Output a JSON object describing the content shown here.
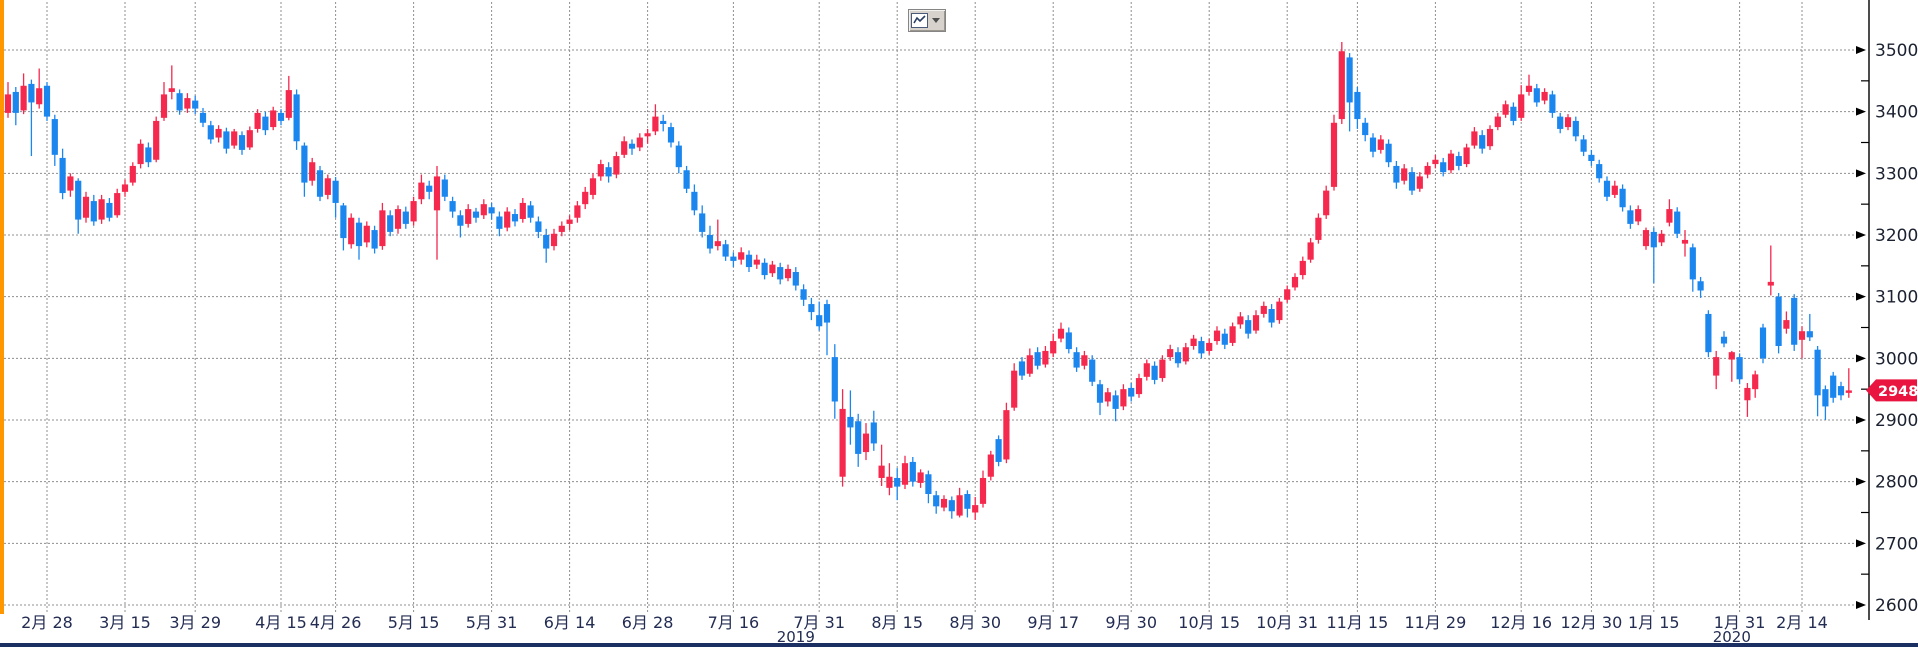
{
  "window": {
    "left_accent_color": "#ff9800",
    "bottom_bar_color": "#1b2f63",
    "background": "#ffffff"
  },
  "toolbar": {
    "chart_type_button": {
      "icon": "line-chart-icon",
      "has_dropdown": true
    }
  },
  "last_price_tag": {
    "value": "2948.0",
    "bg": "#e9143f",
    "text_color": "#ffffff"
  },
  "chart_data": {
    "type": "candlestick",
    "title": "",
    "ylabel": "",
    "xlabel": "",
    "y_range": [
      2600,
      3500
    ],
    "y_tick_step": 100,
    "y_minor_tick_step": 50,
    "y_tick_labels": [
      "3500",
      "3400",
      "3300",
      "3200",
      "3100",
      "3000",
      "2900",
      "2800",
      "2700",
      "2600"
    ],
    "grid": "dotted",
    "legend_position": "none",
    "up_color": "#f5294d",
    "down_color": "#1b87ee",
    "grid_color": "#8f8f8f",
    "axis_color": "#000000",
    "y_label_color": "#1b2130",
    "x_label_color": "#232c52",
    "last_price": 2948.0,
    "x_labels": [
      {
        "label": "2月 28",
        "i": 5
      },
      {
        "label": "3月 15",
        "i": 15
      },
      {
        "label": "3月 29",
        "i": 24
      },
      {
        "label": "4月 15",
        "i": 35
      },
      {
        "label": "4月 26",
        "i": 42
      },
      {
        "label": "5月 15",
        "i": 52
      },
      {
        "label": "5月 31",
        "i": 62
      },
      {
        "label": "6月 14",
        "i": 72
      },
      {
        "label": "6月 28",
        "i": 82
      },
      {
        "label": "7月 16",
        "i": 93
      },
      {
        "label": "7月 31",
        "i": 104
      },
      {
        "label": "8月 15",
        "i": 114
      },
      {
        "label": "8月 30",
        "i": 124
      },
      {
        "label": "9月 17",
        "i": 134
      },
      {
        "label": "9月 30",
        "i": 144
      },
      {
        "label": "10月 15",
        "i": 154
      },
      {
        "label": "10月 31",
        "i": 164
      },
      {
        "label": "11月 15",
        "i": 173
      },
      {
        "label": "11月 29",
        "i": 183
      },
      {
        "label": "12月 16",
        "i": 194
      },
      {
        "label": "12月 30",
        "i": 203
      },
      {
        "label": "1月 15",
        "i": 211
      },
      {
        "label": "1月 31",
        "i": 222
      },
      {
        "label": "2月 14",
        "i": 230
      }
    ],
    "year_markers": [
      {
        "text": "2019",
        "i": 101
      },
      {
        "text": "2020",
        "i": 221
      }
    ],
    "ohlc": [
      [
        3398,
        3448,
        3390,
        3428
      ],
      [
        3432,
        3440,
        3378,
        3398
      ],
      [
        3402,
        3462,
        3396,
        3442
      ],
      [
        3445,
        3452,
        3328,
        3415
      ],
      [
        3412,
        3470,
        3405,
        3438
      ],
      [
        3442,
        3448,
        3385,
        3392
      ],
      [
        3388,
        3395,
        3312,
        3330
      ],
      [
        3325,
        3340,
        3258,
        3268
      ],
      [
        3272,
        3300,
        3262,
        3295
      ],
      [
        3288,
        3292,
        3202,
        3225
      ],
      [
        3228,
        3270,
        3220,
        3262
      ],
      [
        3255,
        3265,
        3215,
        3222
      ],
      [
        3225,
        3265,
        3218,
        3258
      ],
      [
        3252,
        3260,
        3222,
        3228
      ],
      [
        3232,
        3275,
        3228,
        3268
      ],
      [
        3270,
        3290,
        3262,
        3282
      ],
      [
        3285,
        3318,
        3280,
        3312
      ],
      [
        3315,
        3355,
        3308,
        3348
      ],
      [
        3342,
        3350,
        3310,
        3318
      ],
      [
        3322,
        3392,
        3318,
        3385
      ],
      [
        3390,
        3448,
        3385,
        3428
      ],
      [
        3432,
        3475,
        3420,
        3438
      ],
      [
        3430,
        3436,
        3395,
        3402
      ],
      [
        3405,
        3430,
        3398,
        3422
      ],
      [
        3418,
        3426,
        3396,
        3405
      ],
      [
        3398,
        3406,
        3375,
        3382
      ],
      [
        3378,
        3385,
        3348,
        3355
      ],
      [
        3358,
        3378,
        3350,
        3372
      ],
      [
        3368,
        3374,
        3332,
        3340
      ],
      [
        3345,
        3372,
        3340,
        3368
      ],
      [
        3362,
        3368,
        3330,
        3338
      ],
      [
        3342,
        3376,
        3338,
        3370
      ],
      [
        3372,
        3404,
        3366,
        3398
      ],
      [
        3392,
        3400,
        3362,
        3370
      ],
      [
        3375,
        3408,
        3370,
        3402
      ],
      [
        3398,
        3404,
        3378,
        3385
      ],
      [
        3390,
        3458,
        3386,
        3435
      ],
      [
        3428,
        3436,
        3338,
        3352
      ],
      [
        3345,
        3350,
        3262,
        3285
      ],
      [
        3288,
        3325,
        3280,
        3318
      ],
      [
        3305,
        3312,
        3255,
        3262
      ],
      [
        3265,
        3298,
        3258,
        3292
      ],
      [
        3288,
        3294,
        3228,
        3252
      ],
      [
        3248,
        3252,
        3175,
        3195
      ],
      [
        3185,
        3235,
        3178,
        3228
      ],
      [
        3220,
        3228,
        3160,
        3182
      ],
      [
        3188,
        3222,
        3180,
        3215
      ],
      [
        3208,
        3215,
        3170,
        3178
      ],
      [
        3182,
        3252,
        3176,
        3240
      ],
      [
        3232,
        3240,
        3198,
        3205
      ],
      [
        3210,
        3248,
        3202,
        3242
      ],
      [
        3238,
        3246,
        3210,
        3218
      ],
      [
        3222,
        3262,
        3215,
        3255
      ],
      [
        3258,
        3298,
        3250,
        3285
      ],
      [
        3280,
        3288,
        3258,
        3270
      ],
      [
        3240,
        3312,
        3160,
        3295
      ],
      [
        3290,
        3298,
        3255,
        3262
      ],
      [
        3255,
        3262,
        3228,
        3238
      ],
      [
        3232,
        3240,
        3196,
        3215
      ],
      [
        3218,
        3250,
        3212,
        3242
      ],
      [
        3238,
        3244,
        3220,
        3228
      ],
      [
        3232,
        3258,
        3226,
        3250
      ],
      [
        3245,
        3252,
        3225,
        3235
      ],
      [
        3230,
        3238,
        3198,
        3210
      ],
      [
        3212,
        3245,
        3206,
        3238
      ],
      [
        3234,
        3242,
        3214,
        3222
      ],
      [
        3226,
        3260,
        3220,
        3252
      ],
      [
        3248,
        3255,
        3220,
        3228
      ],
      [
        3222,
        3230,
        3195,
        3205
      ],
      [
        3200,
        3210,
        3155,
        3178
      ],
      [
        3182,
        3210,
        3175,
        3202
      ],
      [
        3205,
        3222,
        3198,
        3215
      ],
      [
        3218,
        3232,
        3208,
        3225
      ],
      [
        3228,
        3255,
        3220,
        3248
      ],
      [
        3250,
        3278,
        3242,
        3270
      ],
      [
        3265,
        3300,
        3258,
        3292
      ],
      [
        3295,
        3322,
        3288,
        3315
      ],
      [
        3310,
        3318,
        3285,
        3295
      ],
      [
        3298,
        3335,
        3292,
        3328
      ],
      [
        3330,
        3360,
        3325,
        3352
      ],
      [
        3348,
        3355,
        3330,
        3340
      ],
      [
        3342,
        3365,
        3336,
        3358
      ],
      [
        3360,
        3372,
        3348,
        3365
      ],
      [
        3368,
        3412,
        3362,
        3392
      ],
      [
        3385,
        3395,
        3368,
        3380
      ],
      [
        3375,
        3382,
        3342,
        3350
      ],
      [
        3345,
        3352,
        3300,
        3310
      ],
      [
        3305,
        3312,
        3268,
        3275
      ],
      [
        3270,
        3282,
        3232,
        3240
      ],
      [
        3235,
        3248,
        3196,
        3205
      ],
      [
        3200,
        3215,
        3170,
        3178
      ],
      [
        3182,
        3225,
        3175,
        3190
      ],
      [
        3185,
        3192,
        3158,
        3165
      ],
      [
        3165,
        3172,
        3148,
        3158
      ],
      [
        3160,
        3180,
        3152,
        3172
      ],
      [
        3168,
        3175,
        3140,
        3148
      ],
      [
        3152,
        3168,
        3145,
        3160
      ],
      [
        3155,
        3162,
        3128,
        3135
      ],
      [
        3138,
        3158,
        3132,
        3152
      ],
      [
        3148,
        3155,
        3120,
        3128
      ],
      [
        3130,
        3152,
        3125,
        3145
      ],
      [
        3140,
        3148,
        3110,
        3118
      ],
      [
        3112,
        3120,
        3085,
        3095
      ],
      [
        3088,
        3098,
        3062,
        3075
      ],
      [
        3070,
        3092,
        3045,
        3052
      ],
      [
        3088,
        3095,
        3005,
        3058
      ],
      [
        3002,
        3023,
        2902,
        2930
      ],
      [
        2808,
        2950,
        2792,
        2918
      ],
      [
        2905,
        2948,
        2860,
        2888
      ],
      [
        2898,
        2910,
        2824,
        2845
      ],
      [
        2848,
        2895,
        2835,
        2878
      ],
      [
        2896,
        2915,
        2850,
        2862
      ],
      [
        2806,
        2860,
        2793,
        2826
      ],
      [
        2790,
        2830,
        2778,
        2808
      ],
      [
        2806,
        2822,
        2770,
        2792
      ],
      [
        2795,
        2842,
        2788,
        2830
      ],
      [
        2832,
        2840,
        2792,
        2800
      ],
      [
        2798,
        2820,
        2790,
        2815
      ],
      [
        2812,
        2818,
        2765,
        2780
      ],
      [
        2778,
        2785,
        2748,
        2760
      ],
      [
        2758,
        2778,
        2752,
        2772
      ],
      [
        2770,
        2776,
        2740,
        2752
      ],
      [
        2745,
        2790,
        2742,
        2778
      ],
      [
        2780,
        2786,
        2742,
        2756
      ],
      [
        2750,
        2775,
        2738,
        2762
      ],
      [
        2764,
        2818,
        2758,
        2806
      ],
      [
        2808,
        2850,
        2802,
        2844
      ],
      [
        2869,
        2875,
        2825,
        2832
      ],
      [
        2836,
        2928,
        2830,
        2916
      ],
      [
        2920,
        2992,
        2915,
        2980
      ],
      [
        2995,
        3002,
        2965,
        2972
      ],
      [
        2975,
        3016,
        2970,
        3005
      ],
      [
        3010,
        3018,
        2982,
        2988
      ],
      [
        2990,
        3020,
        2985,
        3012
      ],
      [
        3008,
        3040,
        3002,
        3028
      ],
      [
        3032,
        3058,
        3026,
        3048
      ],
      [
        3042,
        3050,
        3008,
        3015
      ],
      [
        3010,
        3018,
        2978,
        2985
      ],
      [
        2988,
        3012,
        2982,
        3005
      ],
      [
        2998,
        3005,
        2955,
        2962
      ],
      [
        2958,
        2965,
        2908,
        2928
      ],
      [
        2930,
        2952,
        2922,
        2945
      ],
      [
        2940,
        2948,
        2898,
        2918
      ],
      [
        2922,
        2958,
        2916,
        2950
      ],
      [
        2952,
        2960,
        2930,
        2938
      ],
      [
        2942,
        2975,
        2936,
        2968
      ],
      [
        2970,
        2998,
        2964,
        2992
      ],
      [
        2988,
        2995,
        2958,
        2965
      ],
      [
        2968,
        3005,
        2962,
        2998
      ],
      [
        3002,
        3022,
        2996,
        3015
      ],
      [
        3010,
        3018,
        2985,
        2992
      ],
      [
        2995,
        3025,
        2990,
        3018
      ],
      [
        3020,
        3038,
        3014,
        3032
      ],
      [
        3028,
        3035,
        3000,
        3008
      ],
      [
        3012,
        3032,
        3006,
        3025
      ],
      [
        3028,
        3052,
        3022,
        3045
      ],
      [
        3040,
        3048,
        3015,
        3022
      ],
      [
        3025,
        3058,
        3020,
        3052
      ],
      [
        3055,
        3075,
        3048,
        3068
      ],
      [
        3062,
        3070,
        3032,
        3040
      ],
      [
        3045,
        3078,
        3040,
        3070
      ],
      [
        3072,
        3092,
        3066,
        3085
      ],
      [
        3080,
        3088,
        3050,
        3058
      ],
      [
        3062,
        3098,
        3056,
        3092
      ],
      [
        3095,
        3118,
        3090,
        3112
      ],
      [
        3115,
        3138,
        3110,
        3132
      ],
      [
        3135,
        3165,
        3128,
        3158
      ],
      [
        3160,
        3195,
        3155,
        3188
      ],
      [
        3192,
        3235,
        3186,
        3228
      ],
      [
        3232,
        3280,
        3226,
        3272
      ],
      [
        3278,
        3395,
        3272,
        3382
      ],
      [
        3388,
        3513,
        3380,
        3498
      ],
      [
        3488,
        3495,
        3368,
        3415
      ],
      [
        3432,
        3440,
        3372,
        3388
      ],
      [
        3382,
        3390,
        3352,
        3362
      ],
      [
        3358,
        3365,
        3326,
        3335
      ],
      [
        3338,
        3362,
        3332,
        3355
      ],
      [
        3348,
        3355,
        3310,
        3318
      ],
      [
        3312,
        3320,
        3275,
        3285
      ],
      [
        3288,
        3315,
        3282,
        3308
      ],
      [
        3302,
        3310,
        3265,
        3272
      ],
      [
        3275,
        3302,
        3270,
        3295
      ],
      [
        3298,
        3318,
        3292,
        3312
      ],
      [
        3315,
        3330,
        3308,
        3322
      ],
      [
        3318,
        3325,
        3295,
        3302
      ],
      [
        3305,
        3338,
        3300,
        3332
      ],
      [
        3328,
        3335,
        3305,
        3312
      ],
      [
        3315,
        3348,
        3310,
        3342
      ],
      [
        3345,
        3375,
        3340,
        3368
      ],
      [
        3362,
        3370,
        3332,
        3340
      ],
      [
        3344,
        3378,
        3338,
        3372
      ],
      [
        3375,
        3398,
        3370,
        3392
      ],
      [
        3395,
        3418,
        3390,
        3412
      ],
      [
        3408,
        3415,
        3378,
        3385
      ],
      [
        3390,
        3443,
        3385,
        3428
      ],
      [
        3432,
        3460,
        3426,
        3442
      ],
      [
        3438,
        3445,
        3408,
        3415
      ],
      [
        3418,
        3438,
        3412,
        3432
      ],
      [
        3428,
        3434,
        3390,
        3398
      ],
      [
        3392,
        3398,
        3365,
        3372
      ],
      [
        3375,
        3396,
        3370,
        3391
      ],
      [
        3385,
        3392,
        3352,
        3360
      ],
      [
        3355,
        3362,
        3328,
        3335
      ],
      [
        3330,
        3338,
        3312,
        3320
      ],
      [
        3315,
        3322,
        3285,
        3292
      ],
      [
        3288,
        3295,
        3255,
        3262
      ],
      [
        3265,
        3288,
        3260,
        3280
      ],
      [
        3275,
        3282,
        3238,
        3245
      ],
      [
        3240,
        3248,
        3210,
        3218
      ],
      [
        3222,
        3248,
        3216,
        3242
      ],
      [
        3182,
        3212,
        3176,
        3208
      ],
      [
        3205,
        3212,
        3122,
        3180
      ],
      [
        3188,
        3208,
        3182,
        3202
      ],
      [
        3220,
        3258,
        3214,
        3242
      ],
      [
        3238,
        3245,
        3195,
        3202
      ],
      [
        3186,
        3208,
        3165,
        3192
      ],
      [
        3180,
        3186,
        3108,
        3128
      ],
      [
        3125,
        3132,
        3098,
        3110
      ],
      [
        3072,
        3078,
        3002,
        3010
      ],
      [
        2972,
        3012,
        2950,
        3002
      ],
      [
        3035,
        3044,
        3018,
        3024
      ],
      [
        2998,
        3012,
        2962,
        3010
      ],
      [
        3002,
        3008,
        2958,
        2966
      ],
      [
        2932,
        2960,
        2905,
        2952
      ],
      [
        2950,
        2980,
        2936,
        2974
      ],
      [
        3050,
        3056,
        2992,
        3000
      ],
      [
        3118,
        3183,
        3102,
        3124
      ],
      [
        3100,
        3106,
        3008,
        3020
      ],
      [
        3048,
        3076,
        3040,
        3062
      ],
      [
        3098,
        3104,
        3012,
        3022
      ],
      [
        3030,
        3052,
        3000,
        3044
      ],
      [
        3044,
        3072,
        3028,
        3034
      ],
      [
        3014,
        3020,
        2906,
        2940
      ],
      [
        2950,
        2956,
        2900,
        2922
      ],
      [
        2972,
        2978,
        2928,
        2936
      ],
      [
        2955,
        2962,
        2932,
        2940
      ],
      [
        2944,
        2984,
        2936,
        2948
      ]
    ]
  }
}
